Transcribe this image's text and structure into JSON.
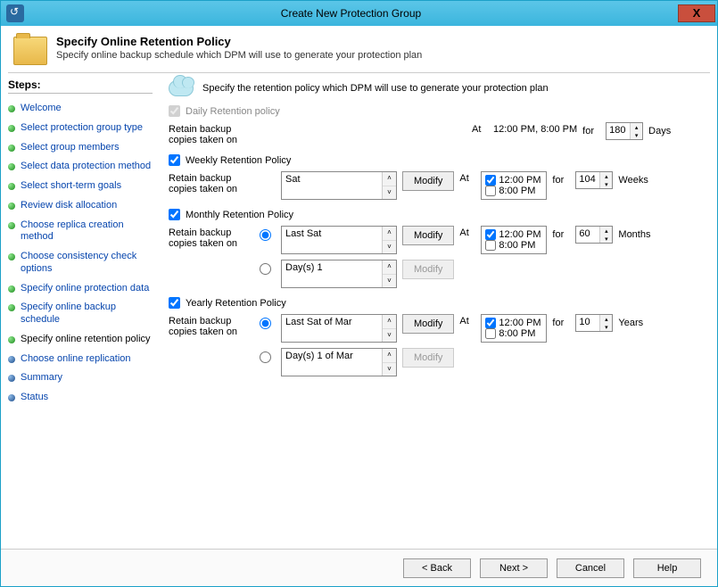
{
  "window": {
    "title": "Create New Protection Group"
  },
  "header": {
    "title": "Specify Online Retention Policy",
    "subtitle": "Specify online backup schedule which DPM will use to generate your protection plan"
  },
  "sidebar": {
    "title": "Steps:",
    "steps": [
      {
        "label": "Welcome",
        "color": "green"
      },
      {
        "label": "Select protection group type",
        "color": "green"
      },
      {
        "label": "Select group members",
        "color": "green"
      },
      {
        "label": "Select data protection method",
        "color": "green"
      },
      {
        "label": "Select short-term goals",
        "color": "green"
      },
      {
        "label": "Review disk allocation",
        "color": "green"
      },
      {
        "label": "Choose replica creation method",
        "color": "green"
      },
      {
        "label": "Choose consistency check options",
        "color": "green"
      },
      {
        "label": "Specify online protection data",
        "color": "green"
      },
      {
        "label": "Specify online backup schedule",
        "color": "green"
      },
      {
        "label": "Specify online retention policy",
        "color": "green",
        "current": true
      },
      {
        "label": "Choose online replication",
        "color": "blue"
      },
      {
        "label": "Summary",
        "color": "blue"
      },
      {
        "label": "Status",
        "color": "blue"
      }
    ]
  },
  "main": {
    "intro": "Specify the retention policy which DPM will use to generate your protection plan",
    "retain_label": "Retain backup copies taken on",
    "at_label": "At",
    "for_label": "for",
    "modify_label": "Modify",
    "daily": {
      "label": "Daily Retention policy",
      "time_text": "12:00 PM, 8:00 PM",
      "value": "180",
      "unit": "Days"
    },
    "weekly": {
      "label": "Weekly Retention Policy",
      "day": "Sat",
      "time1": "12:00 PM",
      "time2": "8:00 PM",
      "value": "104",
      "unit": "Weeks"
    },
    "monthly": {
      "label": "Monthly Retention Policy",
      "opt1": "Last Sat",
      "opt2": "Day(s) 1",
      "time1": "12:00 PM",
      "time2": "8:00 PM",
      "value": "60",
      "unit": "Months"
    },
    "yearly": {
      "label": "Yearly Retention Policy",
      "opt1": "Last Sat of Mar",
      "opt2": "Day(s) 1 of Mar",
      "time1": "12:00 PM",
      "time2": "8:00 PM",
      "value": "10",
      "unit": "Years"
    }
  },
  "footer": {
    "back": "< Back",
    "next": "Next >",
    "cancel": "Cancel",
    "help": "Help"
  }
}
